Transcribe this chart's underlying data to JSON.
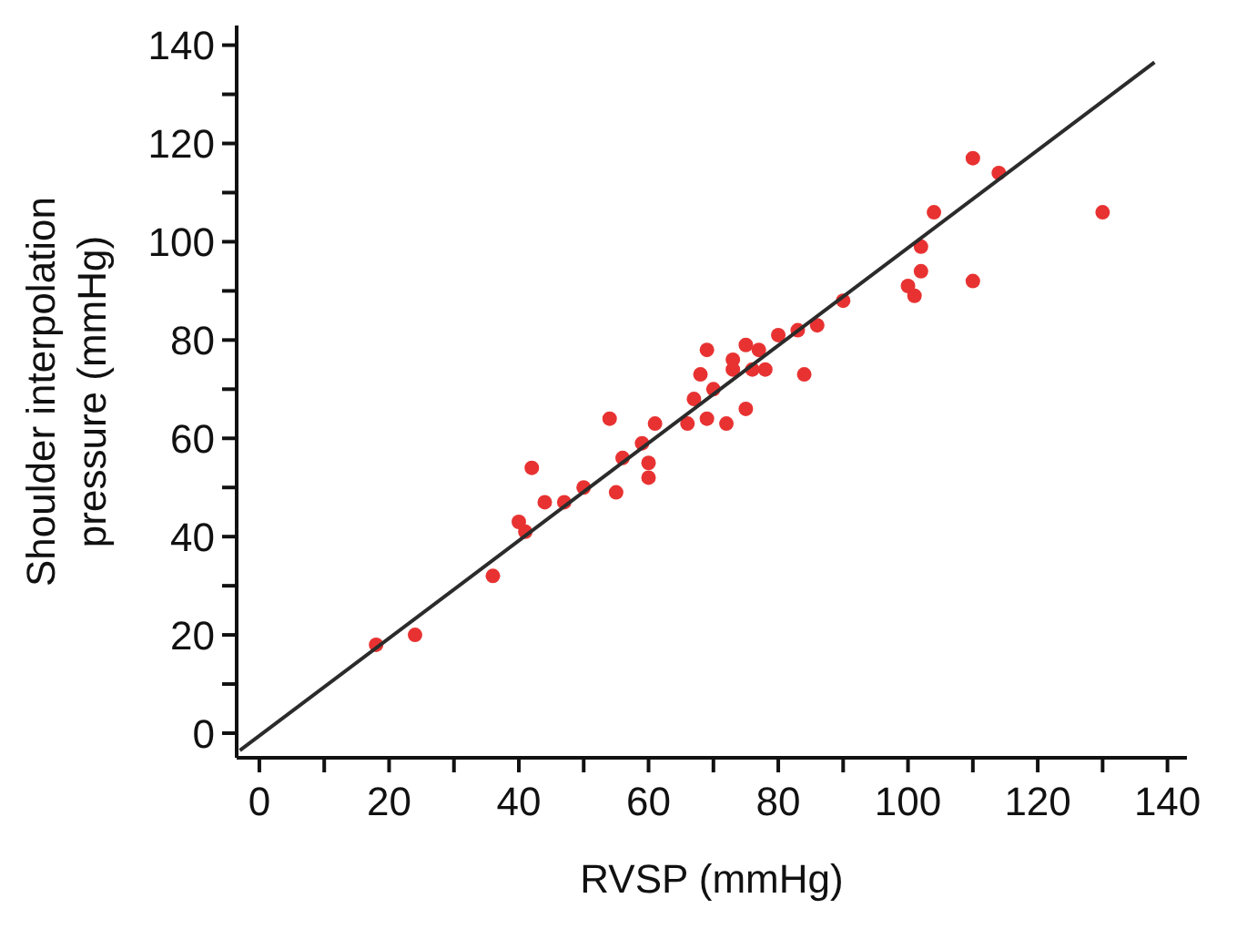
{
  "chart_data": {
    "type": "scatter",
    "xlabel": "RVSP (mmHg)",
    "ylabel": "Shoulder interpolation pressure (mmHg)",
    "xlim": [
      -3.5,
      143
    ],
    "ylim": [
      -5,
      144
    ],
    "xticks": [
      0,
      {
        "value": 10,
        "label": null
      },
      20,
      {
        "value": 30,
        "label": null
      },
      40,
      {
        "value": 50,
        "label": null
      },
      60,
      {
        "value": 70,
        "label": null
      },
      80,
      {
        "value": 90,
        "label": null
      },
      100,
      {
        "value": 110,
        "label": null
      },
      120,
      {
        "value": 130,
        "label": null
      },
      140
    ],
    "yticks": [
      0,
      {
        "value": 10,
        "label": null
      },
      20,
      {
        "value": 30,
        "label": null
      },
      40,
      {
        "value": 50,
        "label": null
      },
      60,
      {
        "value": 70,
        "label": null
      },
      80,
      {
        "value": 90,
        "label": null
      },
      100,
      {
        "value": 110,
        "label": null
      },
      120,
      {
        "value": 130,
        "label": null
      },
      140
    ],
    "grid": false,
    "legend": false,
    "marker": "circle",
    "series": [
      {
        "color": "#e83232",
        "x": [
          18,
          24,
          36,
          40,
          41,
          42,
          44,
          47,
          50,
          54,
          55,
          56,
          59,
          60,
          60,
          61,
          66,
          67,
          68,
          69,
          69,
          70,
          72,
          73,
          73,
          75,
          75,
          76,
          77,
          78,
          80,
          83,
          84,
          86,
          90,
          100,
          101,
          102,
          102,
          104,
          110,
          110,
          114,
          130
        ],
        "values": [
          18,
          20,
          32,
          43,
          41,
          54,
          47,
          47,
          50,
          64,
          49,
          56,
          59,
          55,
          52,
          63,
          63,
          68,
          73,
          78,
          64,
          70,
          63,
          76,
          74,
          66,
          79,
          74,
          78,
          74,
          81,
          82,
          73,
          83,
          88,
          91,
          89,
          94,
          99,
          106,
          117,
          92,
          114,
          106
        ]
      },
      {
        "type": "line",
        "color": "#2b2b2b",
        "line_style": "solid",
        "marker": "none",
        "x": [
          -3,
          138
        ],
        "values": [
          -3.5,
          136.5
        ]
      }
    ]
  }
}
